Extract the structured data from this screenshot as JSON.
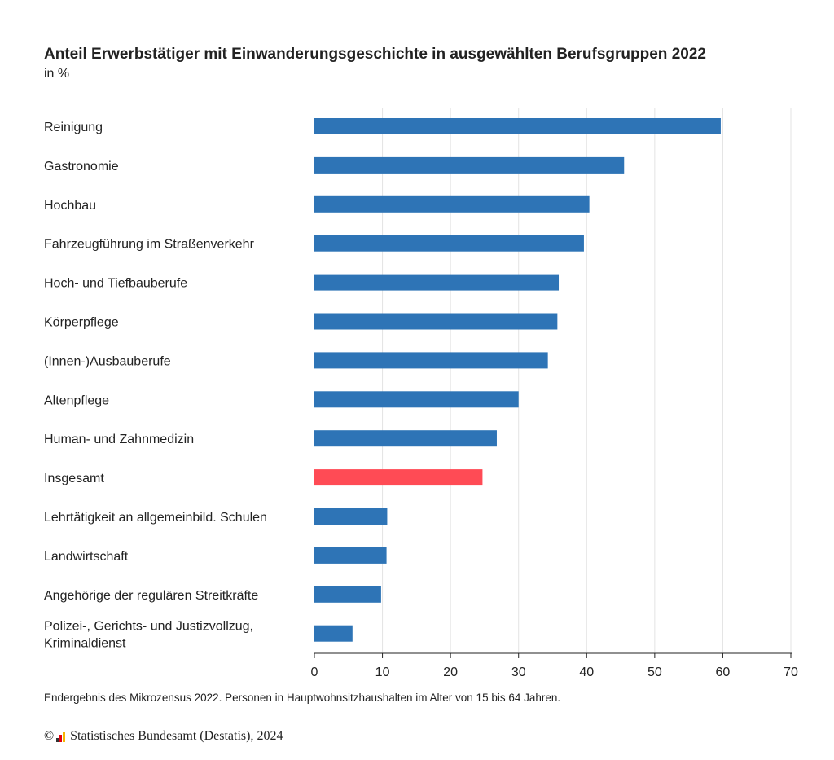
{
  "chart_data": {
    "type": "bar",
    "orientation": "horizontal",
    "title": "Anteil Erwerbstätiger mit Einwanderungsgeschichte in ausgewählten Berufsgruppen 2022",
    "subtitle": "in %",
    "categories": [
      "Reinigung",
      "Gastronomie",
      "Hochbau",
      "Fahrzeugführung im Straßenverkehr",
      "Hoch- und Tiefbauberufe",
      "Körperpflege",
      "(Innen-)Ausbauberufe",
      "Altenpflege",
      "Human- und Zahnmedizin",
      "Insgesamt",
      "Lehrtätigkeit an allgemeinbild. Schulen",
      "Landwirtschaft",
      "Angehörige der regulären Streitkräfte",
      "Polizei-, Gerichts- und Justizvollzug, Kriminaldienst"
    ],
    "values": [
      59.7,
      45.5,
      40.4,
      39.6,
      35.9,
      35.7,
      34.3,
      30.0,
      26.8,
      24.7,
      10.7,
      10.6,
      9.8,
      5.6
    ],
    "highlight_index": 9,
    "xlim": [
      0,
      70
    ],
    "xticks": [
      0,
      10,
      20,
      30,
      40,
      50,
      60,
      70
    ],
    "grid": true,
    "colors": {
      "bar": "#2e74b6",
      "highlight": "#ff4b55",
      "grid": "#e3e3e3",
      "axis": "#222222"
    }
  },
  "footnote": "Endergebnis des Mikrozensus 2022. Personen in Hauptwohnsitzhaushalten im Alter von 15 bis 64 Jahren.",
  "credit": {
    "copyright": "©",
    "text": "Statistisches Bundesamt (Destatis), 2024"
  }
}
